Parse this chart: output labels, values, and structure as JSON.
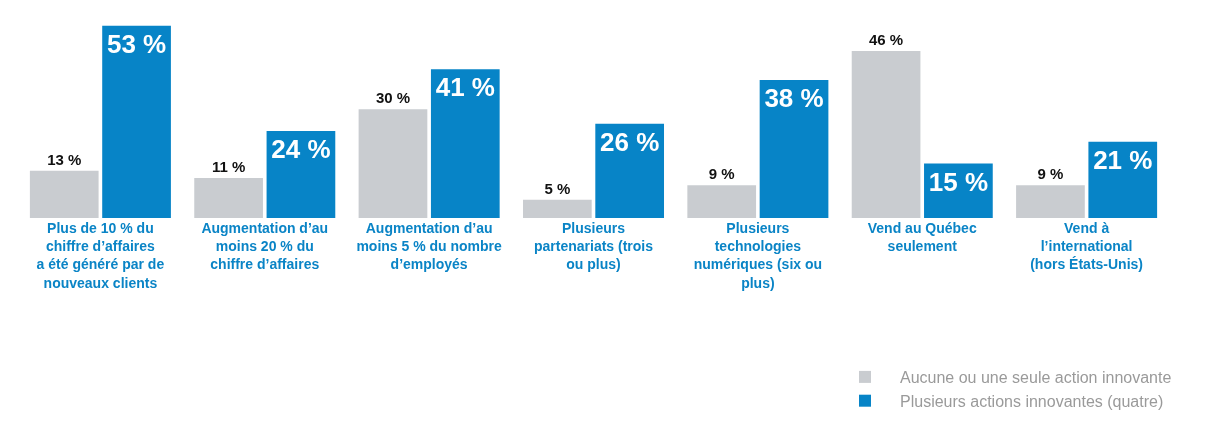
{
  "chart_data": {
    "type": "bar",
    "categories": [
      "Plus de 10 % du chiffre d’affaires a été généré par de nouveaux clients",
      "Augmentation d’au moins 20 % du chiffre d’affaires",
      "Augmentation d’au moins 5 % du nombre d’employés",
      "Plusieurs partenariats (trois ou plus)",
      "Plusieurs technologies numériques (six ou plus)",
      "Vend au Québec seulement",
      "Vend à l’international (hors États-Unis)"
    ],
    "series": [
      {
        "name": "Aucune ou une seule action innovante",
        "color": "#c9ccd0",
        "values": [
          13,
          11,
          30,
          5,
          9,
          46,
          9
        ],
        "value_labels": [
          "13 %",
          "11 %",
          "30 %",
          "5 %",
          "9 %",
          "46 %",
          "9 %"
        ]
      },
      {
        "name": "Plusieurs actions innovantes (quatre)",
        "color": "#0784c7",
        "values": [
          53,
          24,
          41,
          26,
          38,
          15,
          21
        ],
        "value_labels": [
          "53 %",
          "24 %",
          "41 %",
          "26 %",
          "38 %",
          "15 %",
          "21 %"
        ]
      }
    ],
    "legend": "bottom right",
    "grid": false
  }
}
